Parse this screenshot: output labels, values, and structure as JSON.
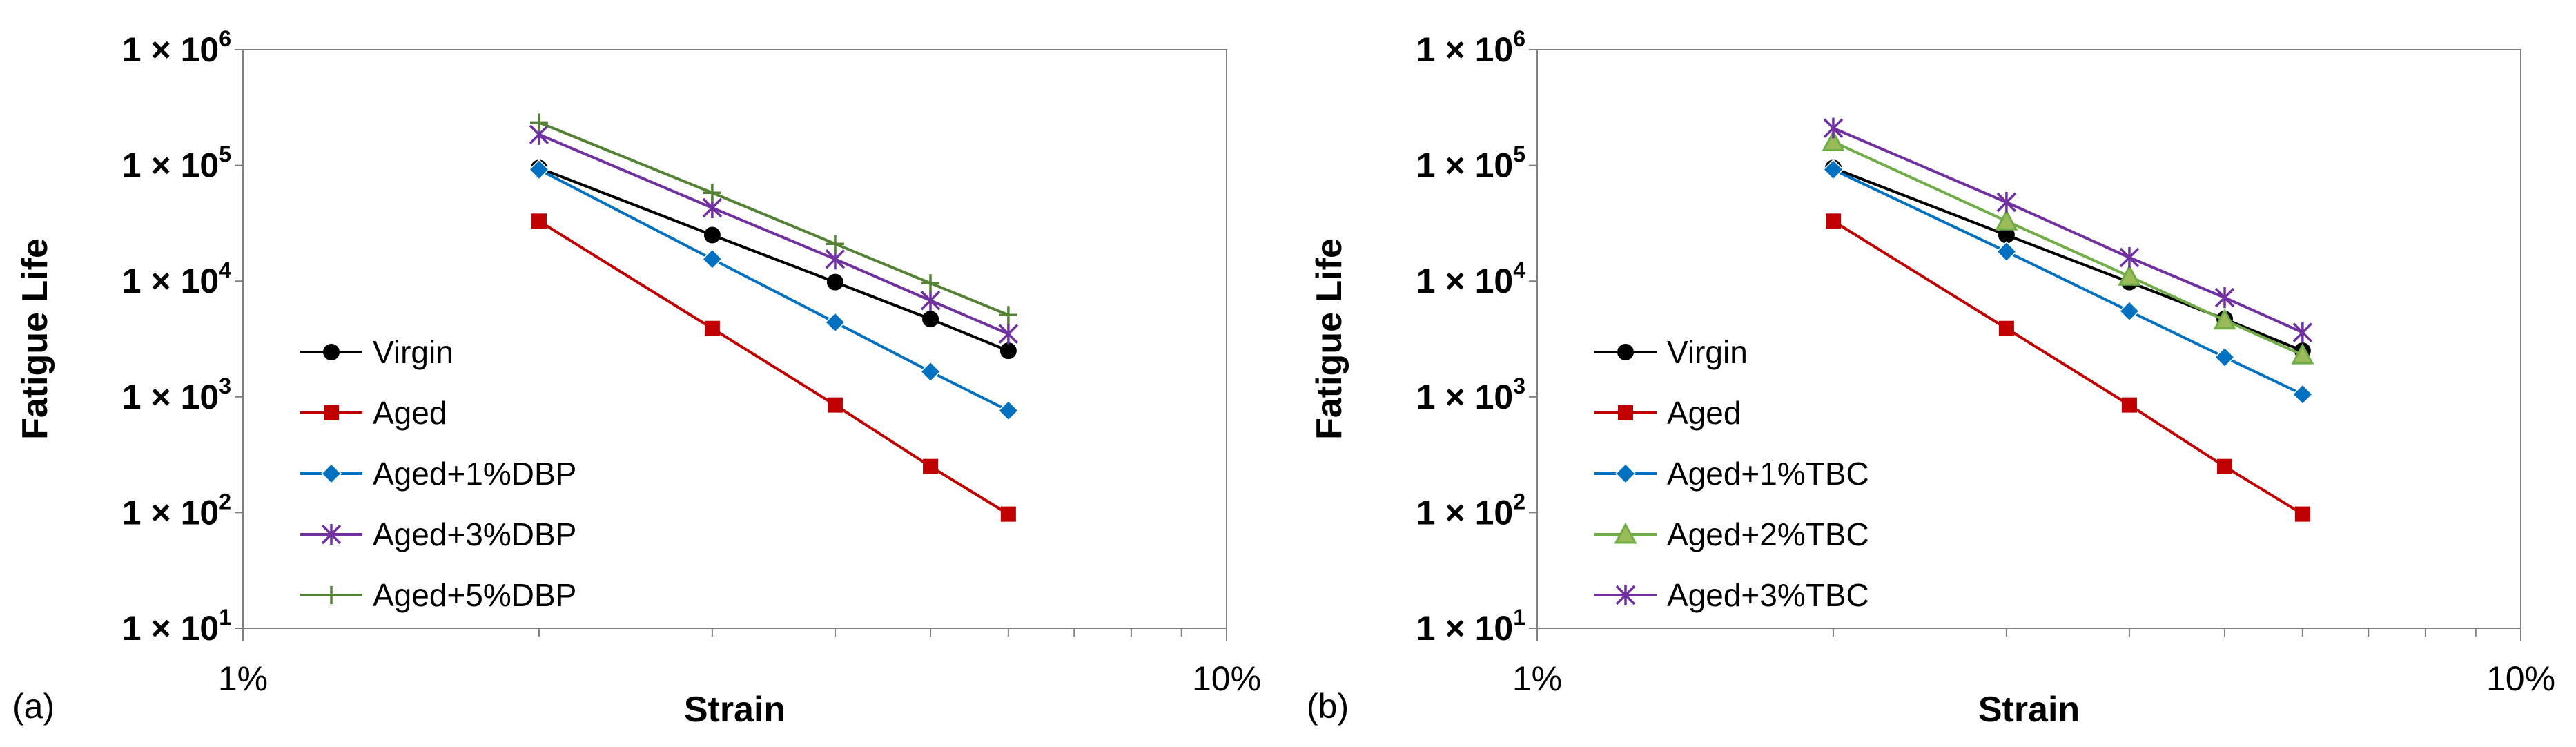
{
  "chart_data": [
    {
      "type": "line",
      "panel_label": "(a)",
      "title": "",
      "xlabel": "Strain",
      "ylabel": "Fatigue Life",
      "xscale": "log",
      "yscale": "log",
      "xlim": [
        1,
        10
      ],
      "ylim": [
        10,
        1000000
      ],
      "x_ticks": [
        {
          "value": 1,
          "label": "1%"
        },
        {
          "value": 10,
          "label": "10%"
        }
      ],
      "y_ticks": [
        {
          "value": 10,
          "base": "1 × 10",
          "exp": "1"
        },
        {
          "value": 100,
          "base": "1 × 10",
          "exp": "2"
        },
        {
          "value": 1000,
          "base": "1 × 10",
          "exp": "3"
        },
        {
          "value": 10000,
          "base": "1 × 10",
          "exp": "4"
        },
        {
          "value": 100000,
          "base": "1 × 10",
          "exp": "5"
        },
        {
          "value": 1000000,
          "base": "1 × 10",
          "exp": "6"
        }
      ],
      "grid": false,
      "legend_position": "lower-left",
      "x": [
        2,
        3,
        4,
        5,
        6
      ],
      "series": [
        {
          "name": "Virgin",
          "color": "#000000",
          "marker": "circle",
          "values": [
            95000,
            25000,
            9800,
            4700,
            2500
          ]
        },
        {
          "name": "Aged",
          "color": "#C00000",
          "marker": "square",
          "values": [
            33000,
            3900,
            850,
            250,
            97
          ]
        },
        {
          "name": "Aged+1%DBP",
          "color": "#0070C0",
          "marker": "diamond",
          "values": [
            92000,
            15500,
            4400,
            1650,
            760
          ]
        },
        {
          "name": "Aged+3%DBP",
          "color": "#7030A0",
          "marker": "asterisk",
          "values": [
            185000,
            43000,
            15500,
            6800,
            3500
          ]
        },
        {
          "name": "Aged+5%DBP",
          "color": "#548235",
          "marker": "plus",
          "values": [
            235000,
            58000,
            21000,
            9600,
            5100
          ]
        }
      ]
    },
    {
      "type": "line",
      "panel_label": "(b)",
      "title": "",
      "xlabel": "Strain",
      "ylabel": "Fatigue Life",
      "xscale": "log",
      "yscale": "log",
      "xlim": [
        1,
        10
      ],
      "ylim": [
        10,
        1000000
      ],
      "x_ticks": [
        {
          "value": 1,
          "label": "1%"
        },
        {
          "value": 10,
          "label": "10%"
        }
      ],
      "y_ticks": [
        {
          "value": 10,
          "base": "1 × 10",
          "exp": "1"
        },
        {
          "value": 100,
          "base": "1 × 10",
          "exp": "2"
        },
        {
          "value": 1000,
          "base": "1 × 10",
          "exp": "3"
        },
        {
          "value": 10000,
          "base": "1 × 10",
          "exp": "4"
        },
        {
          "value": 100000,
          "base": "1 × 10",
          "exp": "5"
        },
        {
          "value": 1000000,
          "base": "1 × 10",
          "exp": "6"
        }
      ],
      "grid": false,
      "legend_position": "lower-left",
      "x": [
        2,
        3,
        4,
        5,
        6
      ],
      "series": [
        {
          "name": "Virgin",
          "color": "#000000",
          "marker": "circle",
          "values": [
            95000,
            25000,
            9800,
            4700,
            2500
          ]
        },
        {
          "name": "Aged",
          "color": "#C00000",
          "marker": "square",
          "values": [
            33000,
            3900,
            850,
            250,
            97
          ]
        },
        {
          "name": "Aged+1%TBC",
          "color": "#0070C0",
          "marker": "diamond",
          "values": [
            92000,
            18000,
            5500,
            2200,
            1050
          ]
        },
        {
          "name": "Aged+2%TBC",
          "color": "#70AD47",
          "marker": "triangle",
          "values": [
            160000,
            33000,
            11000,
            4600,
            2300
          ]
        },
        {
          "name": "Aged+3%TBC",
          "color": "#7030A0",
          "marker": "asterisk",
          "values": [
            210000,
            48000,
            16000,
            7200,
            3600
          ]
        }
      ]
    }
  ]
}
